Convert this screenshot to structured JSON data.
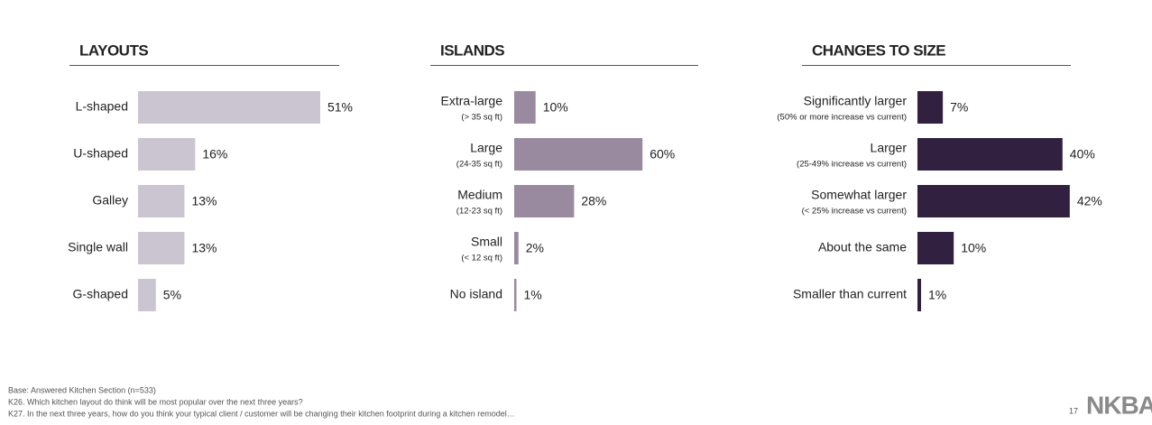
{
  "chart_data": [
    {
      "type": "bar",
      "orientation": "horizontal",
      "title": "LAYOUTS",
      "color": "#cbc5d1",
      "categories": [
        "L-shaped",
        "U-shaped",
        "Galley",
        "Single wall",
        "G-shaped"
      ],
      "category_notes": [
        null,
        null,
        null,
        null,
        null
      ],
      "values": [
        51,
        16,
        13,
        13,
        5
      ],
      "value_labels": [
        "51%",
        "16%",
        "13%",
        "13%",
        "5%"
      ]
    },
    {
      "type": "bar",
      "orientation": "horizontal",
      "title": "ISLANDS",
      "color": "#9a8a9f",
      "categories": [
        "Extra-large",
        "Large",
        "Medium",
        "Small",
        "No island"
      ],
      "category_notes": [
        "(> 35 sq ft)",
        "(24-35 sq ft)",
        "(12-23 sq ft)",
        "(< 12 sq ft)",
        null
      ],
      "values": [
        10,
        60,
        28,
        2,
        1
      ],
      "value_labels": [
        "10%",
        "60%",
        "28%",
        "2%",
        "1%"
      ]
    },
    {
      "type": "bar",
      "orientation": "horizontal",
      "title": "CHANGES TO SIZE",
      "color": "#31203f",
      "categories": [
        "Significantly larger",
        "Larger",
        "Somewhat larger",
        "About the same",
        "Smaller than current"
      ],
      "category_notes": [
        "(50% or more increase vs current)",
        "(25-49% increase vs current)",
        "(< 25% increase vs current)",
        null,
        null
      ],
      "values": [
        7,
        40,
        42,
        10,
        1
      ],
      "value_labels": [
        "7%",
        "40%",
        "42%",
        "10%",
        "1%"
      ]
    }
  ],
  "footer": {
    "notes": [
      "Base:  Answered Kitchen Section (n=533)",
      "K26.   Which kitchen layout do think will be most popular over the next three years?",
      "K27.   In the next three years, how do you think your typical client / customer will be changing their kitchen footprint during a kitchen remodel…"
    ],
    "page_number": "17",
    "logo": "NKBA"
  }
}
